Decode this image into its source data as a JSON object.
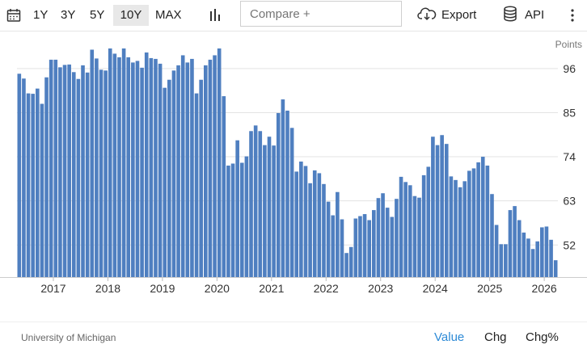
{
  "toolbar": {
    "ranges": [
      "1Y",
      "3Y",
      "5Y",
      "10Y",
      "MAX"
    ],
    "active_range": "10Y",
    "calendar_icon": "calendar-icon",
    "chart_type_icon": "bar-chart-icon",
    "compare_placeholder": "Compare +",
    "export_label": "Export",
    "export_icon": "cloud-download-icon",
    "api_label": "API",
    "api_icon": "database-icon",
    "more_icon": "vertical-dots-icon"
  },
  "units_label": "Points",
  "source": "University of Michigan",
  "footer_tabs": [
    "Value",
    "Chg",
    "Chg%"
  ],
  "active_footer_tab": "Value",
  "colors": {
    "bar": "#4f7fc0",
    "accent": "#2d8ad6"
  },
  "chart_data": {
    "type": "bar",
    "yticks": [
      52,
      63,
      74,
      85,
      96
    ],
    "xticks": [
      "2017",
      "2018",
      "2019",
      "2020",
      "2021",
      "2022",
      "2023",
      "2024",
      "2025",
      "2026"
    ],
    "ylim": [
      44,
      101
    ],
    "x_start": "2016-05",
    "frequency": "monthly",
    "values": [
      94.7,
      93.5,
      89.8,
      89.7,
      91.0,
      87.2,
      93.8,
      98.2,
      98.2,
      96.3,
      96.9,
      97.0,
      95.1,
      93.4,
      96.8,
      95.0,
      100.7,
      98.5,
      95.7,
      95.5,
      101.4,
      99.7,
      98.8,
      101.4,
      98.8,
      97.5,
      97.9,
      96.2,
      100.0,
      98.6,
      98.4,
      97.2,
      91.2,
      93.2,
      95.5,
      96.8,
      99.3,
      97.5,
      98.4,
      89.8,
      93.2,
      96.8,
      98.2,
      99.3,
      101.0,
      89.1,
      71.8,
      72.3,
      78.1,
      72.5,
      74.1,
      80.4,
      81.8,
      80.4,
      76.9,
      79.0,
      76.8,
      84.9,
      88.3,
      85.5,
      81.2,
      70.3,
      72.8,
      71.7,
      67.4,
      70.6,
      69.9,
      67.2,
      62.8,
      59.4,
      65.2,
      58.4,
      50.0,
      51.5,
      58.6,
      59.2,
      59.7,
      58.2,
      60.7,
      63.7,
      64.9,
      61.3,
      59.0,
      63.5,
      69.0,
      67.7,
      66.9,
      64.2,
      63.8,
      69.4,
      71.5,
      79.0,
      76.9,
      79.4,
      77.2,
      69.1,
      68.2,
      66.4,
      67.9,
      70.5,
      71.1,
      72.6,
      74.0,
      71.8,
      64.7,
      57.0,
      52.2,
      52.2,
      60.7,
      61.7,
      58.2,
      55.1,
      53.6,
      51.0,
      52.9,
      56.4,
      56.6,
      53.3,
      48.2
    ]
  }
}
